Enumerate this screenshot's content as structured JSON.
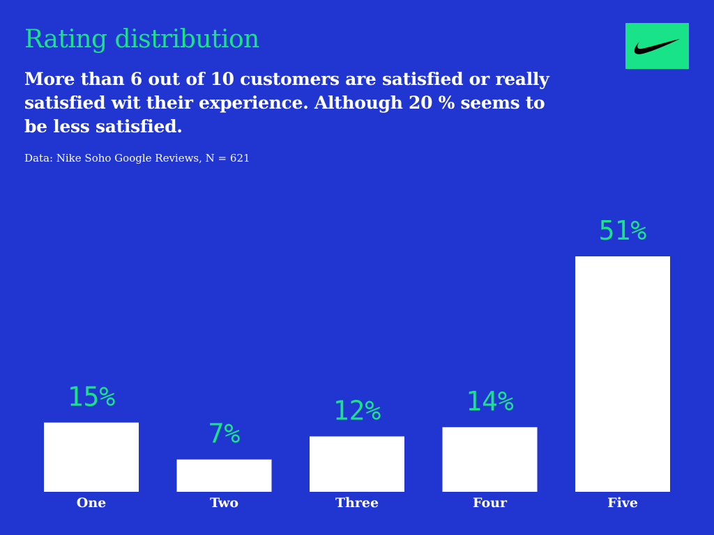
{
  "header": {
    "title": "Rating distribution",
    "subtitle": "More than 6 out of 10 customers are satisfied or really satisfied wit their experience. Although 20 % seems to be less satisfied.",
    "source": "Data: Nike Soho Google Reviews, N = 621"
  },
  "logo": {
    "icon": "swoosh-icon",
    "background_color": "#19E388",
    "mark_color": "#000000"
  },
  "colors": {
    "background": "#2135D0",
    "accent": "#19E388",
    "bar": "#FFFFFF",
    "text": "#FFFFFF"
  },
  "chart_data": {
    "type": "bar",
    "title": "Rating distribution",
    "xlabel": "",
    "ylabel": "",
    "categories": [
      "One",
      "Two",
      "Three",
      "Four",
      "Five"
    ],
    "values": [
      15,
      7,
      12,
      14,
      51
    ],
    "value_labels": [
      "15%",
      "7%",
      "12%",
      "14%",
      "51%"
    ],
    "ylim": [
      0,
      51
    ],
    "grid": false,
    "legend": "none"
  }
}
